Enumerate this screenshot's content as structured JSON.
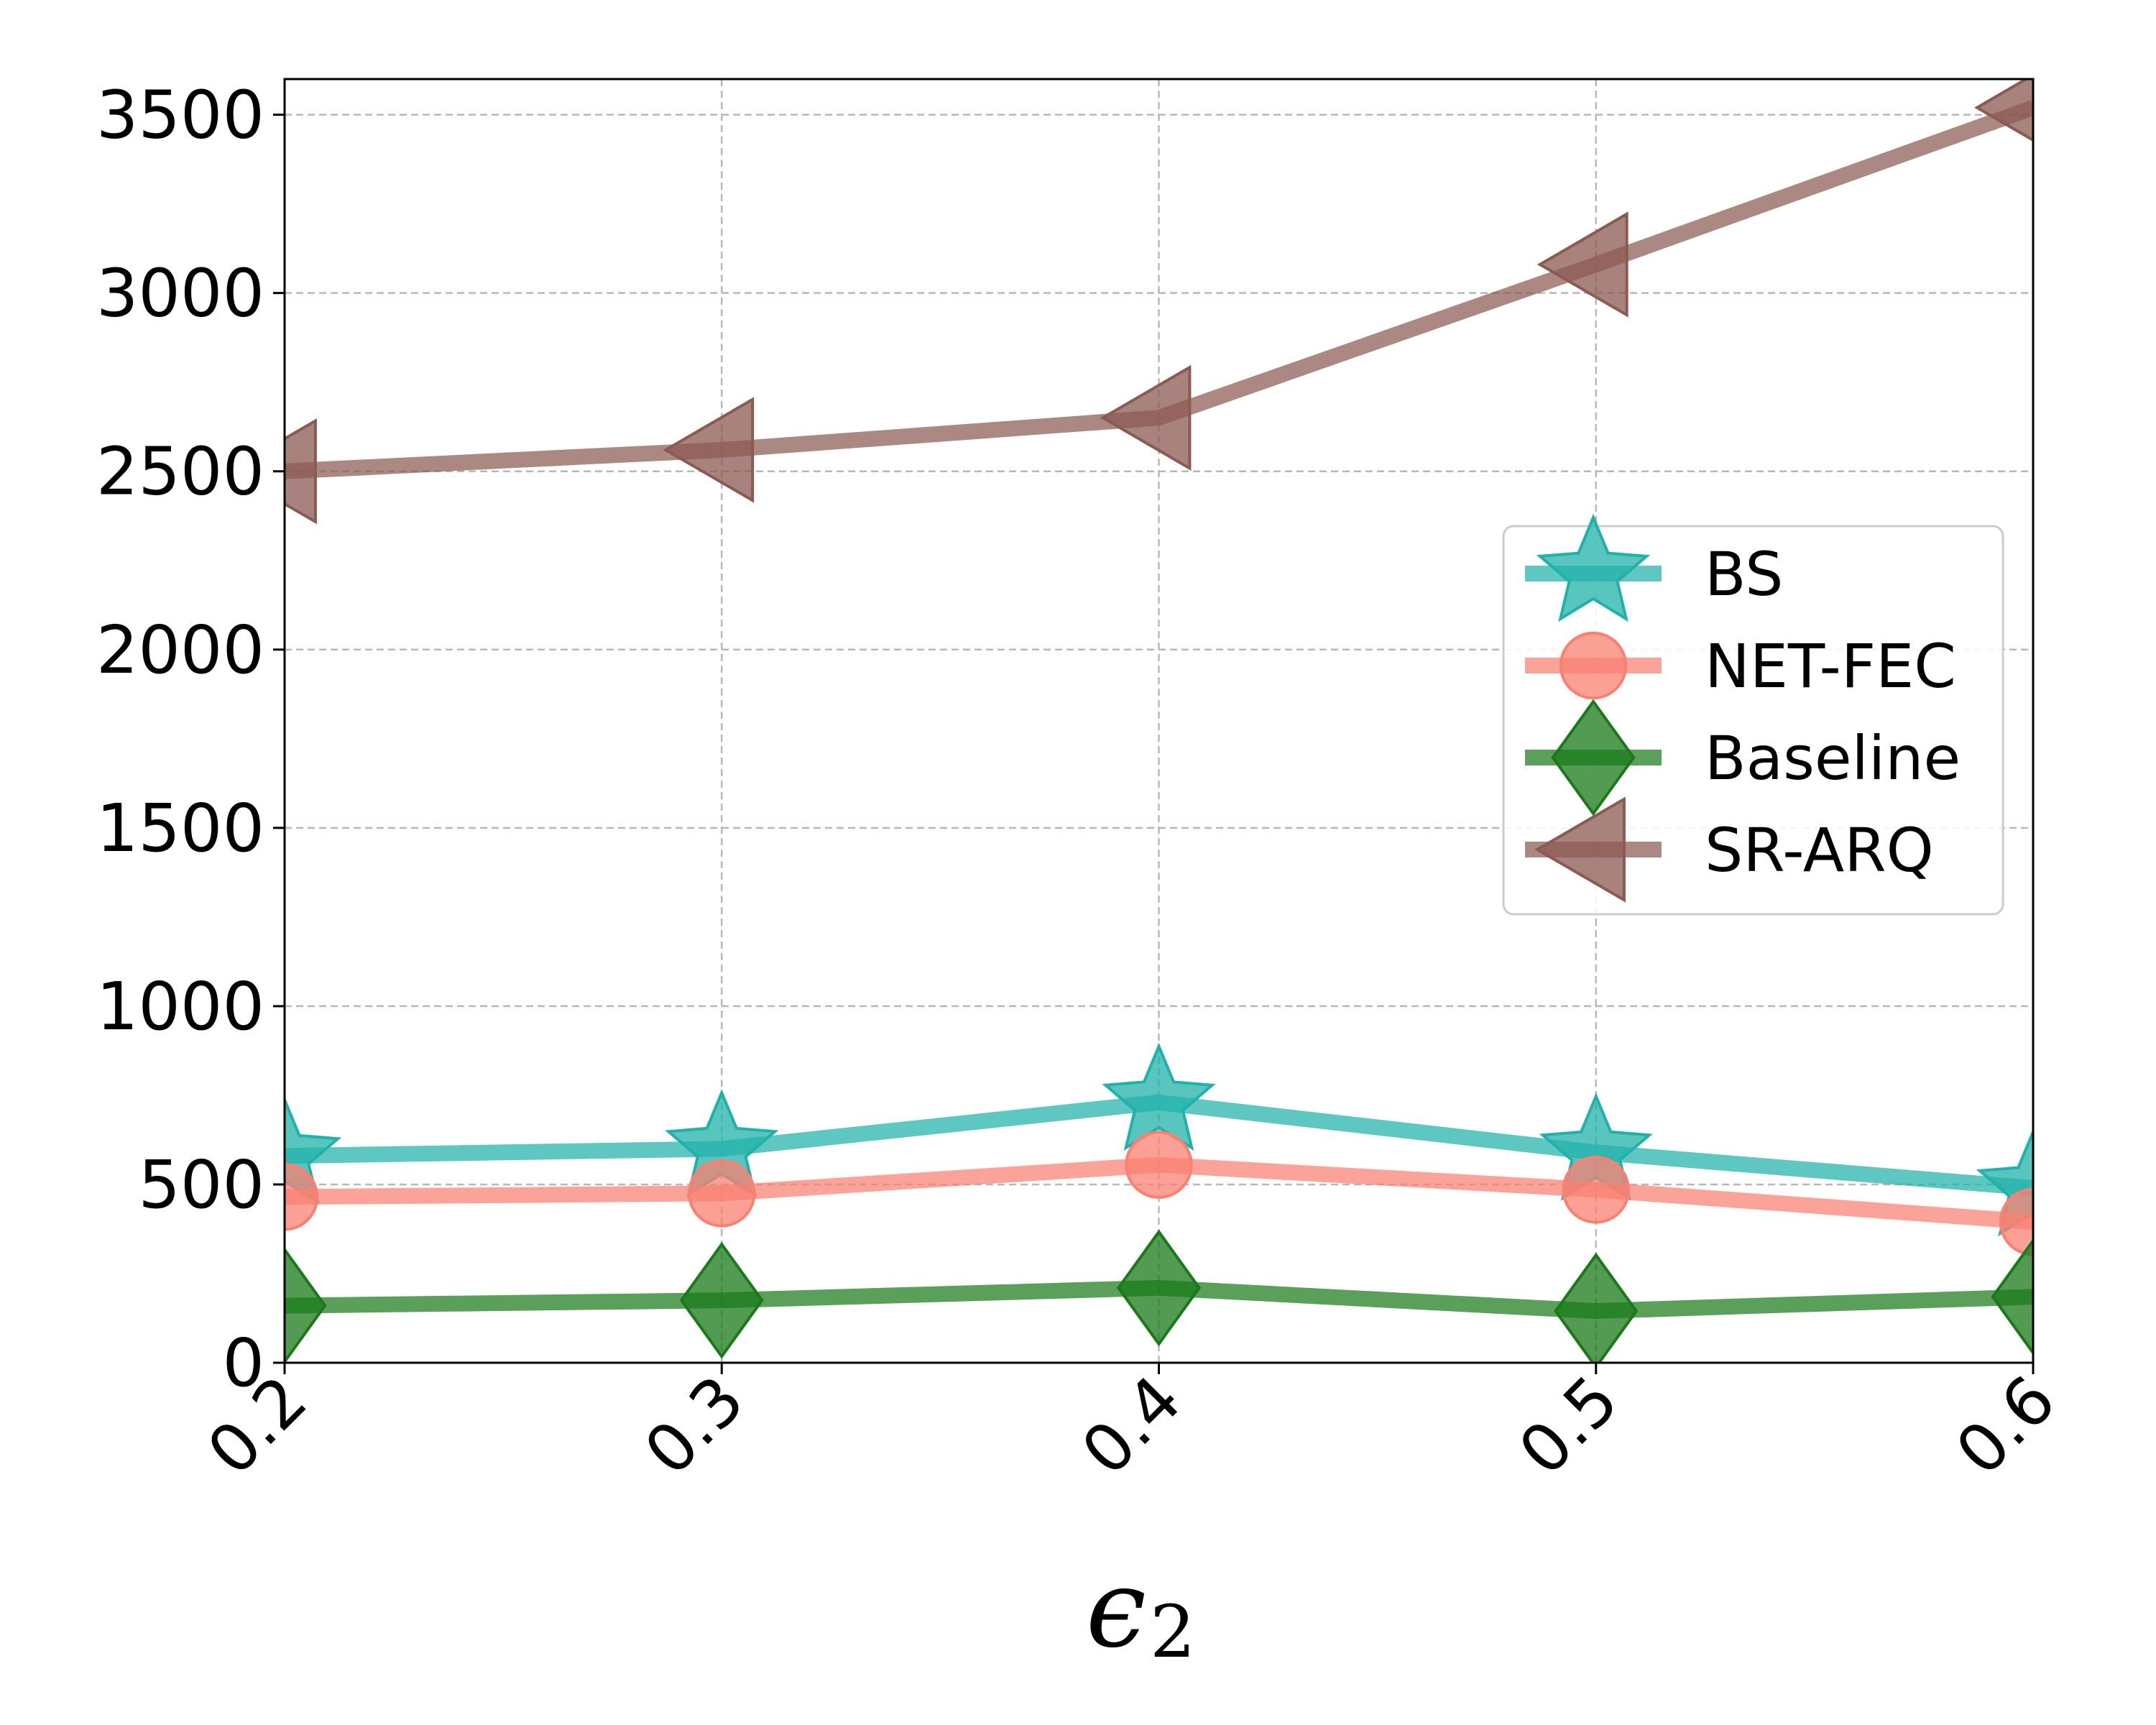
{
  "chart_data": {
    "type": "line",
    "title": "",
    "xlabel": "ϵ",
    "xlabel_subscript": "2",
    "ylabel": "",
    "x": [
      0.2,
      0.3,
      0.4,
      0.5,
      0.6
    ],
    "x_tick_labels": [
      "0.2",
      "0.3",
      "0.4",
      "0.5",
      "0.6"
    ],
    "xlim": [
      0.2,
      0.6
    ],
    "ylim": [
      0,
      3600
    ],
    "y_ticks": [
      0,
      500,
      1000,
      1500,
      2000,
      2500,
      3000,
      3500
    ],
    "y_tick_labels": [
      "0",
      "500",
      "1000",
      "1500",
      "2000",
      "2500",
      "3000",
      "3500"
    ],
    "grid": true,
    "legend_position": "center-right",
    "series": [
      {
        "name": "BS",
        "marker": "star",
        "color": "#20b2aa",
        "values": [
          580,
          600,
          730,
          590,
          490
        ]
      },
      {
        "name": "NET-FEC",
        "marker": "circle",
        "color": "#fa8072",
        "values": [
          465,
          475,
          555,
          485,
          395
        ]
      },
      {
        "name": "Baseline",
        "marker": "diamond",
        "color": "#1a7a1a",
        "values": [
          160,
          175,
          210,
          145,
          185
        ]
      },
      {
        "name": "SR-ARQ",
        "marker": "triangle-left",
        "color": "#8b5a52",
        "values": [
          2500,
          2560,
          2650,
          3080,
          3520
        ]
      }
    ]
  }
}
